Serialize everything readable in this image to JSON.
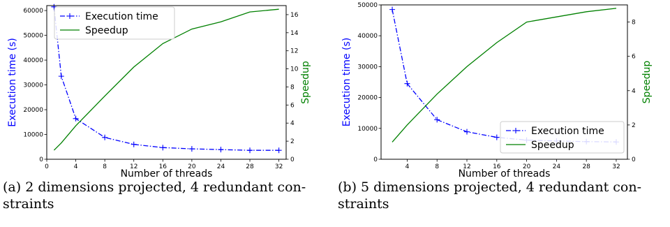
{
  "chart_data": [
    {
      "type": "line",
      "xlabel": "Number of threads",
      "ylabel": "Execution time (s)",
      "y2label": "Speedup",
      "xlim": [
        0,
        33
      ],
      "ylim": [
        0,
        62000
      ],
      "y2lim": [
        0,
        17
      ],
      "xticks": [
        0,
        4,
        8,
        12,
        16,
        20,
        24,
        28,
        32
      ],
      "yticks": [
        0,
        10000,
        20000,
        30000,
        40000,
        50000,
        60000
      ],
      "y2ticks": [
        0,
        2,
        4,
        6,
        8,
        10,
        12,
        14,
        16
      ],
      "legend_position": "top-left",
      "series": [
        {
          "name": "Execution time",
          "axis": "left",
          "color": "#0000ff",
          "style": "dashdot",
          "marker": "+",
          "x": [
            1,
            2,
            4,
            8,
            12,
            16,
            20,
            24,
            28,
            32
          ],
          "values": [
            61500,
            33500,
            16400,
            8800,
            6000,
            4700,
            4200,
            3900,
            3600,
            3600
          ]
        },
        {
          "name": "Speedup",
          "axis": "right",
          "color": "#008000",
          "style": "solid",
          "x": [
            1,
            2,
            4,
            8,
            12,
            16,
            20,
            24,
            28,
            32
          ],
          "values": [
            1.0,
            1.8,
            3.7,
            7.0,
            10.2,
            12.8,
            14.4,
            15.2,
            16.3,
            16.6
          ]
        }
      ]
    },
    {
      "type": "line",
      "xlabel": "Number of threads",
      "ylabel": "Execution time (s)",
      "y2label": "Speedup",
      "xlim": [
        0.5,
        33.5
      ],
      "ylim": [
        0,
        50000
      ],
      "y2lim": [
        0,
        9
      ],
      "xticks": [
        4,
        8,
        12,
        16,
        20,
        24,
        28,
        32
      ],
      "yticks": [
        0,
        10000,
        20000,
        30000,
        40000,
        50000
      ],
      "y2ticks": [
        0,
        2,
        4,
        6,
        8
      ],
      "legend_position": "bottom-right",
      "series": [
        {
          "name": "Execution time",
          "axis": "left",
          "color": "#0000ff",
          "style": "dashdot",
          "marker": "+",
          "x": [
            2,
            4,
            8,
            12,
            16,
            20,
            24,
            28,
            32
          ],
          "values": [
            48500,
            24500,
            12800,
            8900,
            7100,
            6200,
            5900,
            5700,
            5600
          ]
        },
        {
          "name": "Speedup",
          "axis": "right",
          "color": "#008000",
          "style": "solid",
          "x": [
            2,
            4,
            8,
            12,
            16,
            20,
            24,
            28,
            32
          ],
          "values": [
            1.0,
            2.0,
            3.8,
            5.4,
            6.8,
            8.0,
            8.3,
            8.6,
            8.8
          ]
        }
      ]
    }
  ],
  "captions": [
    "(a) 2 dimensions projected, 4 redundant con-straints",
    "(b) 5 dimensions projected, 4 redundant con-straints"
  ]
}
